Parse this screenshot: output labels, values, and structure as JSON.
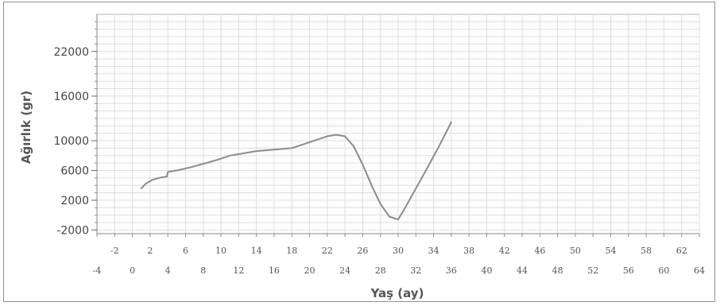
{
  "chart_data": {
    "type": "line",
    "title": "",
    "xlabel": "Yaş (ay)",
    "ylabel": "Ağırlık (gr)",
    "xlim": [
      -4,
      64
    ],
    "ylim": [
      -2500,
      27000
    ],
    "y_ticks": [
      -2000,
      2000,
      6000,
      10000,
      16000,
      22000
    ],
    "x_ticks_upper": [
      -2,
      2,
      6,
      10,
      14,
      18,
      22,
      26,
      30,
      34,
      38,
      42,
      46,
      50,
      54,
      58,
      62
    ],
    "x_ticks_lower": [
      -4,
      0,
      4,
      8,
      12,
      16,
      20,
      24,
      28,
      32,
      36,
      40,
      44,
      48,
      52,
      56,
      60,
      64
    ],
    "grid": true,
    "legend": "none",
    "series": [
      {
        "color": "#8c8c8c",
        "x": [
          1.0,
          1.5,
          2.2,
          3.0,
          3.9,
          4.0,
          5.0,
          6.5,
          8.0,
          9.5,
          11.0,
          12.0,
          14.0,
          16.0,
          18.0,
          20.0,
          22.0,
          23.0,
          24.0,
          25.0,
          26.0,
          27.0,
          28.0,
          29.0,
          30.0,
          30.5,
          31.5,
          33.0,
          34.5,
          36.0
        ],
        "y": [
          3600,
          4200,
          4700,
          5000,
          5200,
          5800,
          6000,
          6400,
          6900,
          7400,
          8000,
          8200,
          8600,
          8800,
          9000,
          9800,
          10600,
          10800,
          10600,
          9200,
          6800,
          4000,
          1500,
          -200,
          -600,
          400,
          2500,
          5700,
          9000,
          12500
        ]
      }
    ]
  }
}
